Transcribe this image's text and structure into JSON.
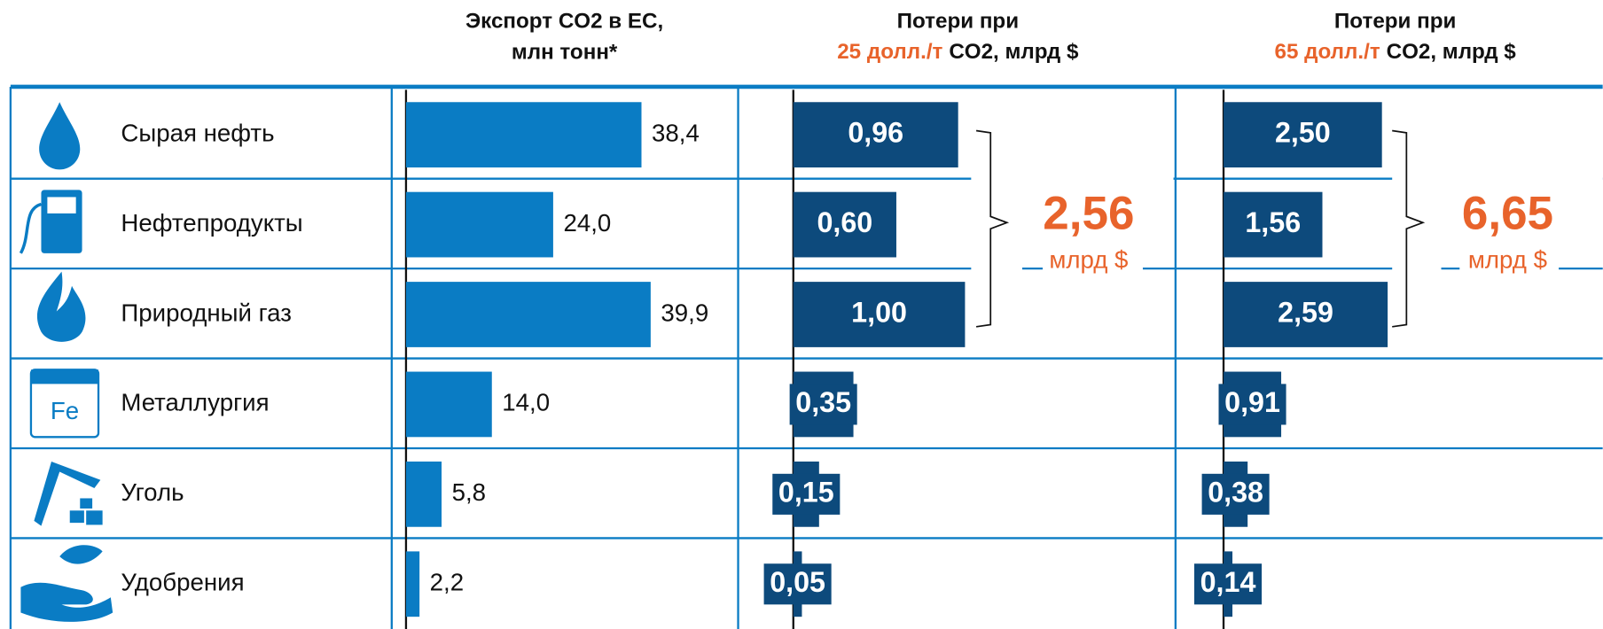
{
  "headers": [
    {
      "line1": "Экспорт CO2 в ЕС,",
      "line2": "млн тонн*"
    },
    {
      "line1": "Потери при",
      "highlight": "25 долл./т",
      "rest": "CO2, млрд $"
    },
    {
      "line1": "Потери при",
      "highlight": "65 долл./т",
      "rest": "CO2, млрд $"
    }
  ],
  "categories": [
    "Сырая нефть",
    "Нефтепродукты",
    "Природный газ",
    "Металлургия",
    "Уголь",
    "Удобрения"
  ],
  "columns": [
    {
      "values": [
        38.4,
        24.0,
        39.9,
        14.0,
        5.8,
        2.2
      ],
      "value_labels": [
        "38,4",
        "24,0",
        "39,9",
        "14,0",
        "5,8",
        "2,2"
      ],
      "color": "#0a7cc4",
      "xlim": [
        0,
        50
      ]
    },
    {
      "values": [
        0.96,
        0.6,
        1.0,
        0.35,
        0.15,
        0.05
      ],
      "value_labels": [
        "0,96",
        "0,60",
        "1,00",
        "0,35",
        "0,15",
        "0,05"
      ],
      "color": "#0d4a7c",
      "xlim": [
        0,
        2.5
      ],
      "total": {
        "value": 2.56,
        "label": "2,56",
        "unit": "млрд $"
      }
    },
    {
      "values": [
        2.5,
        1.56,
        2.59,
        0.91,
        0.38,
        0.14
      ],
      "value_labels": [
        "2,50",
        "1,56",
        "2,59",
        "0,91",
        "0,38",
        "0,14"
      ],
      "color": "#0d4a7c",
      "xlim": [
        0,
        6
      ],
      "total": {
        "value": 6.65,
        "label": "6,65",
        "unit": "млрд $"
      }
    }
  ]
}
